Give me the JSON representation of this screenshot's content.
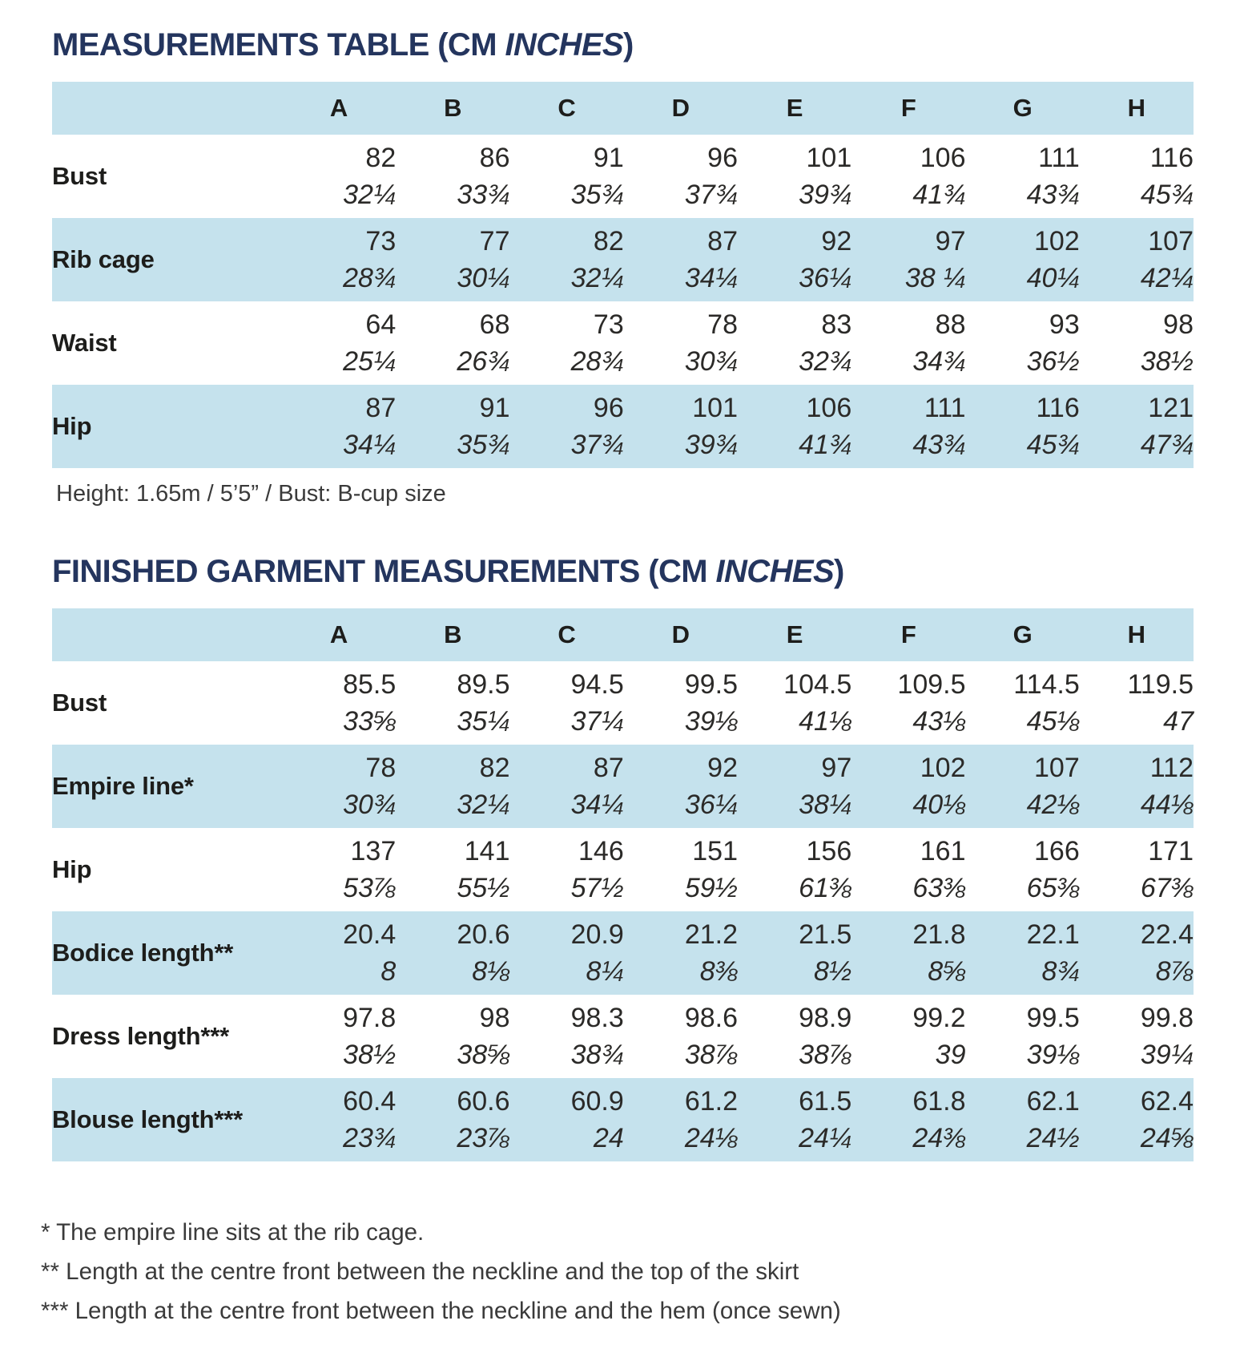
{
  "colors": {
    "title_navy": "#24355e",
    "row_blue": "#c5e2ed",
    "text_dark": "#1d1d1b"
  },
  "tables": [
    {
      "title": {
        "prefix": "MEASUREMENTS TABLE (CM ",
        "italic": "INCHES",
        "suffix": ")"
      },
      "columns": [
        "A",
        "B",
        "C",
        "D",
        "E",
        "F",
        "G",
        "H"
      ],
      "rows": [
        {
          "label": "Bust",
          "cm": [
            "82",
            "86",
            "91",
            "96",
            "101",
            "106",
            "111",
            "116"
          ],
          "in": [
            "32¼",
            "33¾",
            "35¾",
            "37¾",
            "39¾",
            "41¾",
            "43¾",
            "45¾"
          ]
        },
        {
          "label": "Rib cage",
          "cm": [
            "73",
            "77",
            "82",
            "87",
            "92",
            "97",
            "102",
            "107"
          ],
          "in": [
            "28¾",
            "30¼",
            "32¼",
            "34¼",
            "36¼",
            "38 ¼",
            "40¼",
            "42¼"
          ]
        },
        {
          "label": "Waist",
          "cm": [
            "64",
            "68",
            "73",
            "78",
            "83",
            "88",
            "93",
            "98"
          ],
          "in": [
            "25¼",
            "26¾",
            "28¾",
            "30¾",
            "32¾",
            "34¾",
            "36½",
            "38½"
          ]
        },
        {
          "label": "Hip",
          "cm": [
            "87",
            "91",
            "96",
            "101",
            "106",
            "111",
            "116",
            "121"
          ],
          "in": [
            "34¼",
            "35¾",
            "37¾",
            "39¾",
            "41¾",
            "43¾",
            "45¾",
            "47¾"
          ]
        }
      ],
      "note": "Height: 1.65m / 5’5” / Bust: B-cup size"
    },
    {
      "title": {
        "prefix": "FINISHED GARMENT MEASUREMENTS (CM ",
        "italic": "INCHES",
        "suffix": ")"
      },
      "columns": [
        "A",
        "B",
        "C",
        "D",
        "E",
        "F",
        "G",
        "H"
      ],
      "rows": [
        {
          "label": "Bust",
          "cm": [
            "85.5",
            "89.5",
            "94.5",
            "99.5",
            "104.5",
            "109.5",
            "114.5",
            "119.5"
          ],
          "in": [
            "33⅝",
            "35¼",
            "37¼",
            "39⅛",
            "41⅛",
            "43⅛",
            "45⅛",
            "47"
          ]
        },
        {
          "label": "Empire line*",
          "cm": [
            "78",
            "82",
            "87",
            "92",
            "97",
            "102",
            "107",
            "112"
          ],
          "in": [
            "30¾",
            "32¼",
            "34¼",
            "36¼",
            "38¼",
            "40⅛",
            "42⅛",
            "44⅛"
          ]
        },
        {
          "label": "Hip",
          "cm": [
            "137",
            "141",
            "146",
            "151",
            "156",
            "161",
            "166",
            "171"
          ],
          "in": [
            "53⅞",
            "55½",
            "57½",
            "59½",
            "61⅜",
            "63⅜",
            "65⅜",
            "67⅜"
          ]
        },
        {
          "label": "Bodice length**",
          "cm": [
            "20.4",
            "20.6",
            "20.9",
            "21.2",
            "21.5",
            "21.8",
            "22.1",
            "22.4"
          ],
          "in": [
            "8",
            "8⅛",
            "8¼",
            "8⅜",
            "8½",
            "8⅝",
            "8¾",
            "8⅞"
          ]
        },
        {
          "label": "Dress length***",
          "cm": [
            "97.8",
            "98",
            "98.3",
            "98.6",
            "98.9",
            "99.2",
            "99.5",
            "99.8"
          ],
          "in": [
            "38½",
            "38⅝",
            "38¾",
            "38⅞",
            "38⅞",
            "39",
            "39⅛",
            "39¼"
          ]
        },
        {
          "label": "Blouse length***",
          "cm": [
            "60.4",
            "60.6",
            "60.9",
            "61.2",
            "61.5",
            "61.8",
            "62.1",
            "62.4"
          ],
          "in": [
            "23¾",
            "23⅞",
            "24",
            "24⅛",
            "24¼",
            "24⅜",
            "24½",
            "24⅝"
          ]
        }
      ]
    }
  ],
  "footnotes": [
    "* The empire line sits at the rib cage.",
    "** Length at the centre front between the neckline and the top of the skirt",
    "*** Length at the centre front between the neckline and the hem (once sewn)"
  ]
}
